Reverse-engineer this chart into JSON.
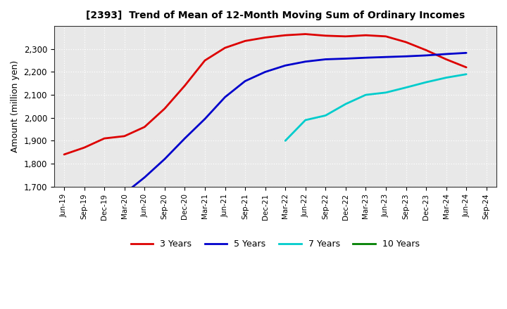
{
  "title": "[2393]  Trend of Mean of 12-Month Moving Sum of Ordinary Incomes",
  "ylabel": "Amount (million yen)",
  "ylim": [
    1700,
    2400
  ],
  "yticks": [
    1700,
    1800,
    1900,
    2000,
    2100,
    2200,
    2300
  ],
  "background_color": "#ffffff",
  "plot_bg_color": "#e8e8e8",
  "grid_color": "#ffffff",
  "x_labels": [
    "Jun-19",
    "Sep-19",
    "Dec-19",
    "Mar-20",
    "Jun-20",
    "Sep-20",
    "Dec-20",
    "Mar-21",
    "Jun-21",
    "Sep-21",
    "Dec-21",
    "Mar-22",
    "Jun-22",
    "Sep-22",
    "Dec-22",
    "Mar-23",
    "Jun-23",
    "Sep-23",
    "Dec-23",
    "Mar-24",
    "Jun-24",
    "Sep-24"
  ],
  "series": {
    "3 Years": {
      "color": "#dd0000",
      "data_x": [
        0,
        1,
        2,
        3,
        4,
        5,
        6,
        7,
        8,
        9,
        10,
        11,
        12,
        13,
        14,
        15,
        16,
        17,
        18,
        19,
        20
      ],
      "data_y": [
        1840,
        1870,
        1910,
        1920,
        1960,
        2040,
        2140,
        2250,
        2305,
        2335,
        2350,
        2360,
        2365,
        2358,
        2355,
        2360,
        2355,
        2330,
        2295,
        2255,
        2220
      ]
    },
    "5 Years": {
      "color": "#0000cc",
      "data_x": [
        3,
        4,
        5,
        6,
        7,
        8,
        9,
        10,
        11,
        12,
        13,
        14,
        15,
        16,
        17,
        18,
        19,
        20
      ],
      "data_y": [
        1670,
        1740,
        1820,
        1910,
        1995,
        2090,
        2160,
        2200,
        2228,
        2245,
        2255,
        2258,
        2262,
        2265,
        2268,
        2272,
        2278,
        2283
      ]
    },
    "7 Years": {
      "color": "#00cccc",
      "data_x": [
        11,
        12,
        13,
        14,
        15,
        16,
        17,
        18,
        19,
        20
      ],
      "data_y": [
        1900,
        1990,
        2010,
        2060,
        2100,
        2110,
        2132,
        2155,
        2175,
        2190
      ]
    },
    "10 Years": {
      "color": "#008000",
      "data_x": [],
      "data_y": []
    }
  },
  "legend_labels": [
    "3 Years",
    "5 Years",
    "7 Years",
    "10 Years"
  ],
  "legend_colors": [
    "#dd0000",
    "#0000cc",
    "#00cccc",
    "#008000"
  ]
}
